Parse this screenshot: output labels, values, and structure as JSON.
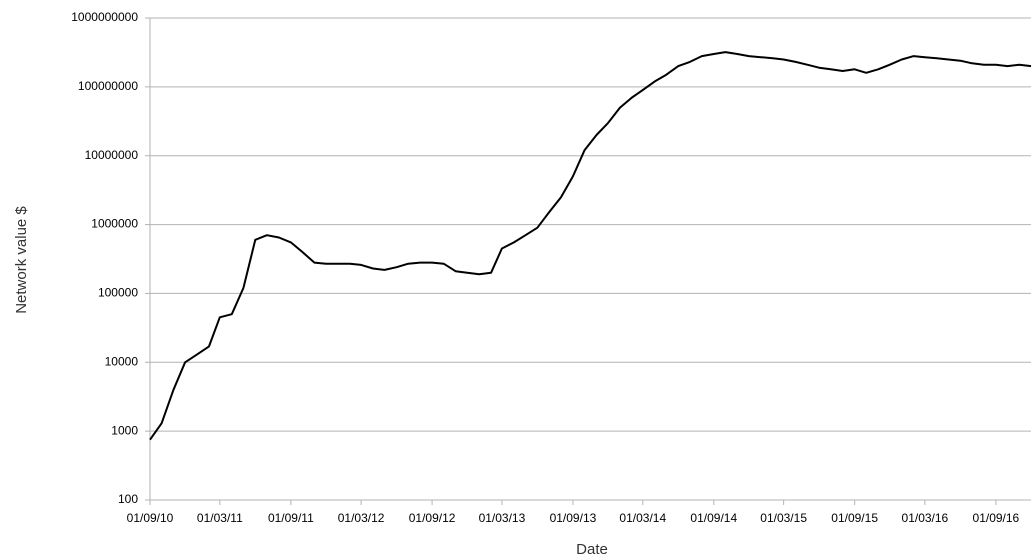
{
  "chart_data": {
    "type": "line",
    "x_label": "Date",
    "y_label": "Network value $",
    "x": [
      "01/09/10",
      "01/10/10",
      "01/11/10",
      "01/12/10",
      "01/01/11",
      "01/02/11",
      "01/03/11",
      "01/04/11",
      "01/05/11",
      "01/06/11",
      "01/07/11",
      "01/08/11",
      "01/09/11",
      "01/10/11",
      "01/11/11",
      "01/12/11",
      "01/01/12",
      "01/02/12",
      "01/03/12",
      "01/04/12",
      "01/05/12",
      "01/06/12",
      "01/07/12",
      "01/08/12",
      "01/09/12",
      "01/10/12",
      "01/11/12",
      "01/12/12",
      "01/01/13",
      "01/02/13",
      "01/03/13",
      "01/04/13",
      "01/05/13",
      "01/06/13",
      "01/07/13",
      "01/08/13",
      "01/09/13",
      "01/10/13",
      "01/11/13",
      "01/12/13",
      "01/01/14",
      "01/02/14",
      "01/03/14",
      "01/04/14",
      "01/05/14",
      "01/06/14",
      "01/07/14",
      "01/08/14",
      "01/09/14",
      "01/10/14",
      "01/11/14",
      "01/12/14",
      "01/01/15",
      "01/02/15",
      "01/03/15",
      "01/04/15",
      "01/05/15",
      "01/06/15",
      "01/07/15",
      "01/08/15",
      "01/09/15",
      "01/10/15",
      "01/11/15",
      "01/12/15",
      "01/01/16",
      "01/02/16",
      "01/03/16",
      "01/04/16",
      "01/05/16",
      "01/06/16",
      "01/07/16",
      "01/08/16",
      "01/09/16",
      "01/10/16",
      "01/11/16",
      "01/12/16"
    ],
    "series": [
      {
        "name": "Network value",
        "color": "#000000",
        "values": [
          750,
          1300,
          4000,
          10000,
          13000,
          17000,
          45000,
          50000,
          120000,
          600000,
          700000,
          650000,
          550000,
          400000,
          280000,
          270000,
          270000,
          270000,
          260000,
          230000,
          220000,
          240000,
          270000,
          280000,
          280000,
          270000,
          210000,
          200000,
          190000,
          200000,
          450000,
          550000,
          700000,
          900000,
          1500000,
          2500000,
          5000000,
          12000000,
          20000000,
          30000000,
          50000000,
          70000000,
          90000000,
          120000000,
          150000000,
          200000000,
          230000000,
          280000000,
          300000000,
          320000000,
          300000000,
          280000000,
          270000000,
          260000000,
          250000000,
          230000000,
          210000000,
          190000000,
          180000000,
          170000000,
          180000000,
          160000000,
          180000000,
          210000000,
          250000000,
          280000000,
          270000000,
          260000000,
          250000000,
          240000000,
          220000000,
          210000000,
          210000000,
          200000000,
          210000000,
          200000000
        ]
      }
    ],
    "xlim": [
      "01/09/10",
      "01/12/16"
    ],
    "xticks": [
      "01/09/10",
      "01/03/11",
      "01/09/11",
      "01/03/12",
      "01/09/12",
      "01/03/13",
      "01/09/13",
      "01/03/14",
      "01/09/14",
      "01/03/15",
      "01/09/15",
      "01/03/16",
      "01/09/16"
    ],
    "ylim": [
      100,
      1000000000
    ],
    "yticks": [
      100,
      1000,
      10000,
      100000,
      1000000,
      10000000,
      100000000,
      1000000000
    ],
    "y_scale": "log",
    "grid": true
  }
}
